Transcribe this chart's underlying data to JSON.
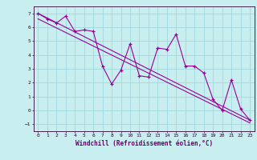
{
  "background_color": "#c8eef0",
  "grid_color": "#a0d8dc",
  "line_color": "#990099",
  "marker_color": "#990099",
  "x_label": "Windchill (Refroidissement éolien,°C)",
  "x_label_color": "#660066",
  "ylim": [
    -1.5,
    7.5
  ],
  "xlim": [
    -0.5,
    23.5
  ],
  "yticks": [
    -1,
    0,
    1,
    2,
    3,
    4,
    5,
    6,
    7
  ],
  "xticks": [
    0,
    1,
    2,
    3,
    4,
    5,
    6,
    7,
    8,
    9,
    10,
    11,
    12,
    13,
    14,
    15,
    16,
    17,
    18,
    19,
    20,
    21,
    22,
    23
  ],
  "data_x": [
    0,
    1,
    2,
    3,
    4,
    5,
    6,
    7,
    8,
    9,
    10,
    11,
    12,
    13,
    14,
    15,
    16,
    17,
    18,
    19,
    20,
    21,
    22,
    23
  ],
  "data_y": [
    7.0,
    6.6,
    6.3,
    6.8,
    5.7,
    5.8,
    5.7,
    3.2,
    1.9,
    2.9,
    4.8,
    2.5,
    2.4,
    4.5,
    4.4,
    5.5,
    3.2,
    3.2,
    2.7,
    0.8,
    0.0,
    2.2,
    0.1,
    -0.7
  ],
  "reg_line1_x": [
    0,
    23
  ],
  "reg_line1_y": [
    7.0,
    -0.7
  ],
  "reg_line2_x": [
    0,
    23
  ],
  "reg_line2_y": [
    6.6,
    -0.9
  ],
  "tick_fontsize": 4.5,
  "label_fontsize": 5.5
}
